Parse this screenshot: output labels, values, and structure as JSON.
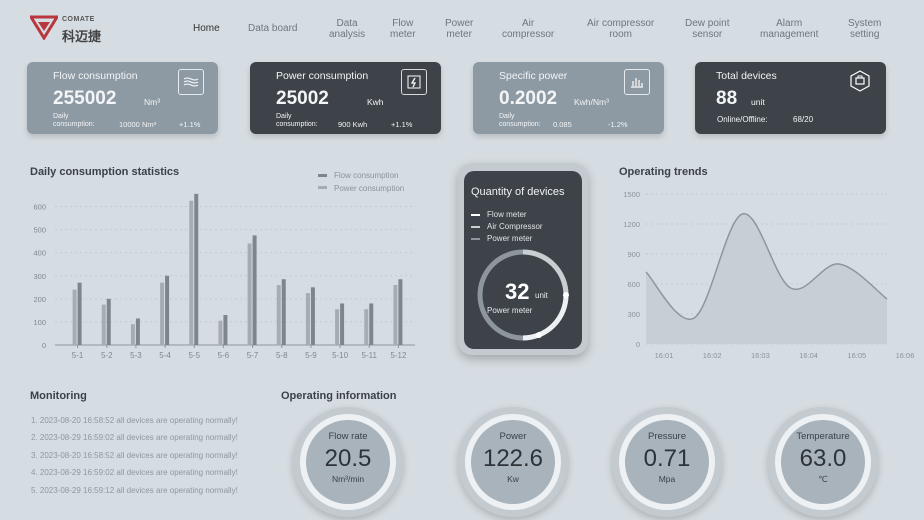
{
  "header": {
    "logo_brand": "COMATE",
    "logo_cn": "科迈捷",
    "nav": [
      {
        "label": "Home"
      },
      {
        "label": "Data board"
      },
      {
        "label": "Data\nanalysis"
      },
      {
        "label": "Flow\nmeter"
      },
      {
        "label": "Power\nmeter"
      },
      {
        "label": "Air\ncompressor"
      },
      {
        "label": "Air compressor\nroom"
      },
      {
        "label": "Dew point\nsensor"
      },
      {
        "label": "Alarm\nmanagement"
      },
      {
        "label": "System\nsetting"
      }
    ]
  },
  "cards": [
    {
      "title": "Flow consumption",
      "value": "255002",
      "unit": "Nm³",
      "sub_label": "Daily\nconsumption:",
      "sub_value": "10000 Nm³",
      "pct": "+1.1%",
      "icon": "waves-icon"
    },
    {
      "title": "Power consumption",
      "value": "25002",
      "unit": "Kwh",
      "sub_label": "Daily\nconsumption:",
      "sub_value": "900 Kwh",
      "pct": "+1.1%",
      "icon": "lightning-icon"
    },
    {
      "title": "Specific power",
      "value": "0.2002",
      "unit": "Kwh/Nm³",
      "sub_label": "Daily\nconsumption:",
      "sub_value": "0.085",
      "pct": "-1.2%",
      "icon": "bar-chart-icon"
    },
    {
      "title": "Total devices",
      "value": "88",
      "unit": "unit",
      "online_label": "Online/Offline:",
      "online_value": "68/20",
      "icon": "device-icon"
    }
  ],
  "daily_chart": {
    "title": "Daily consumption statistics",
    "legend": [
      "Flow consumption",
      "Power consumption"
    ]
  },
  "chart_data": [
    {
      "type": "bar",
      "title": "Daily consumption statistics",
      "categories": [
        "5-1",
        "5-2",
        "5-3",
        "5-4",
        "5-5",
        "5-6",
        "5-7",
        "5-8",
        "5-9",
        "5-10",
        "5-11",
        "5-12"
      ],
      "series": [
        {
          "name": "Flow consumption",
          "values": [
            240,
            175,
            90,
            270,
            625,
            105,
            440,
            260,
            225,
            155,
            155,
            260
          ],
          "color": "#a5adb3"
        },
        {
          "name": "Power consumption",
          "values": [
            270,
            200,
            115,
            300,
            655,
            130,
            475,
            285,
            250,
            180,
            180,
            285
          ],
          "color": "#7d868d"
        }
      ],
      "yticks": [
        0,
        100,
        200,
        300,
        400,
        500,
        600
      ],
      "ylim": [
        0,
        650
      ]
    },
    {
      "type": "area",
      "title": "Operating trends",
      "x": [
        "16:01",
        "16:02",
        "16:03",
        "16:04",
        "16:05",
        "16:06"
      ],
      "values": [
        720,
        260,
        1300,
        560,
        800,
        450
      ],
      "yticks": [
        0,
        300,
        600,
        900,
        1200,
        1500
      ],
      "ylim": [
        0,
        1500
      ]
    },
    {
      "type": "pie",
      "title": "Quantity of devices",
      "legend": [
        "Flow meter",
        "Air Compressor",
        "Power meter"
      ],
      "colors": [
        "#ffffff",
        "#c9ced2",
        "#8d969c"
      ],
      "total": "32",
      "unit": "unit",
      "subtitle": "Power meter"
    }
  ],
  "trend_chart": {
    "title": "Operating trends"
  },
  "quantity": {
    "title": "Quantity of devices",
    "legend": [
      "Flow meter",
      "Air Compressor",
      "Power meter"
    ],
    "value": "32",
    "unit": "unit",
    "subtitle": "Power meter"
  },
  "monitoring": {
    "title": "Monitoring",
    "lines": [
      "1. 2023-08-20 16:58:52 all devices are operating normally!",
      "2. 2023-08-29 16:59:02 all devices are operating normally!",
      "3. 2023-08-20 16:58:52 all devices are operating normally!",
      "4. 2023-08-29 16:59:02 all devices are operating normally!",
      "5. 2023-08-29 16:59:12 all devices are operating normally!"
    ]
  },
  "operating": {
    "title": "Operating information",
    "gauges": [
      {
        "label": "Flow rate",
        "value": "20.5",
        "unit": "Nm³/min"
      },
      {
        "label": "Power",
        "value": "122.6",
        "unit": "Kw"
      },
      {
        "label": "Pressure",
        "value": "0.71",
        "unit": "Mpa"
      },
      {
        "label": "Temperature",
        "value": "63.0",
        "unit": "℃"
      }
    ]
  }
}
